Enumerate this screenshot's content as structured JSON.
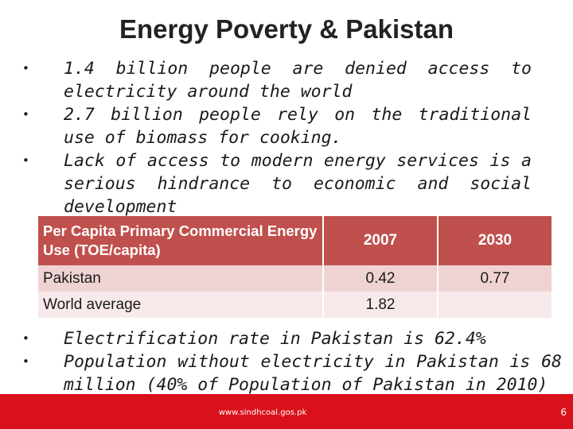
{
  "slide": {
    "title": "Energy Poverty & Pakistan",
    "bullets_top": [
      "1.4 billion people are denied access to electricity around the world",
      "2.7 billion people rely on the traditional use of biomass for cooking.",
      "Lack of access to modern energy services is a serious hindrance to economic and social development"
    ],
    "table": {
      "headers": [
        "Per Capita Primary Commercial Energy Use (TOE/capita)",
        "2007",
        "2030"
      ],
      "rows": [
        [
          "Pakistan",
          "0.42",
          "0.77"
        ],
        [
          "World average",
          "1.82",
          ""
        ]
      ]
    },
    "bullets_bottom": [
      "Electrification rate in Pakistan is 62.4%",
      "Population without electricity in Pakistan is 68 million (40% of Population of Pakistan in 2010)"
    ],
    "bullet_symbol": "•",
    "footer": {
      "url": "www.sindhcoal.gos.pk",
      "page_number": "6"
    },
    "colors": {
      "header_bg": "#c0504d",
      "row_odd": "#efd3d2",
      "row_even": "#f8eaea",
      "footer_bg": "#d9111b"
    }
  }
}
